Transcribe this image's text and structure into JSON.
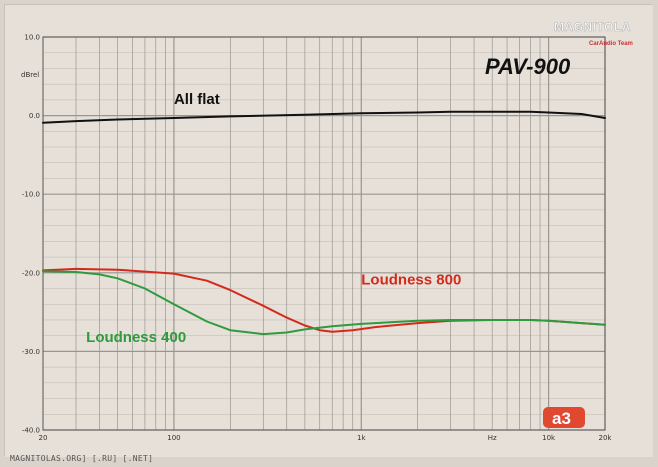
{
  "chart_data": {
    "type": "line",
    "title": "PAV-900",
    "ylabel": "dBrel",
    "xlabel": "Hz",
    "xscale": "log",
    "xlim": [
      20,
      20000
    ],
    "ylim": [
      -40,
      10
    ],
    "x_tick_labels": [
      "20",
      "100",
      "1k",
      "10k",
      "20k"
    ],
    "x_ticks": [
      20,
      100,
      1000,
      10000,
      20000
    ],
    "hz_label_at": 5000,
    "y_ticks": [
      10,
      0,
      -10,
      -20,
      -30,
      -40
    ],
    "y_tick_labels": [
      "10.0",
      "0.0",
      "-10.0",
      "-20.0",
      "-30.0",
      "-40.0"
    ],
    "grid": true,
    "series": [
      {
        "name": "All flat",
        "color": "#111111",
        "label_at": [
          100,
          1.5
        ],
        "points": [
          [
            20,
            -0.9
          ],
          [
            30,
            -0.7
          ],
          [
            50,
            -0.5
          ],
          [
            100,
            -0.3
          ],
          [
            200,
            -0.1
          ],
          [
            500,
            0.1
          ],
          [
            1000,
            0.3
          ],
          [
            2000,
            0.4
          ],
          [
            3000,
            0.5
          ],
          [
            5000,
            0.5
          ],
          [
            8000,
            0.5
          ],
          [
            10000,
            0.4
          ],
          [
            15000,
            0.2
          ],
          [
            20000,
            -0.3
          ]
        ]
      },
      {
        "name": "Loudness 800",
        "color": "#d42a1c",
        "label_at": [
          1000,
          -21.5
        ],
        "points": [
          [
            20,
            -19.7
          ],
          [
            30,
            -19.5
          ],
          [
            50,
            -19.6
          ],
          [
            100,
            -20.1
          ],
          [
            150,
            -21.0
          ],
          [
            200,
            -22.2
          ],
          [
            300,
            -24.2
          ],
          [
            400,
            -25.7
          ],
          [
            500,
            -26.7
          ],
          [
            600,
            -27.3
          ],
          [
            700,
            -27.5
          ],
          [
            900,
            -27.3
          ],
          [
            1200,
            -26.9
          ],
          [
            2000,
            -26.4
          ],
          [
            3000,
            -26.1
          ],
          [
            5000,
            -26.0
          ],
          [
            8000,
            -26.0
          ],
          [
            10000,
            -26.1
          ],
          [
            15000,
            -26.4
          ],
          [
            20000,
            -26.6
          ]
        ]
      },
      {
        "name": "Loudness 400",
        "color": "#2f9a3e",
        "label_at": [
          34,
          -28.8
        ],
        "points": [
          [
            20,
            -19.8
          ],
          [
            30,
            -19.9
          ],
          [
            40,
            -20.2
          ],
          [
            50,
            -20.7
          ],
          [
            70,
            -22.0
          ],
          [
            100,
            -24.0
          ],
          [
            150,
            -26.2
          ],
          [
            200,
            -27.3
          ],
          [
            300,
            -27.8
          ],
          [
            400,
            -27.6
          ],
          [
            500,
            -27.2
          ],
          [
            700,
            -26.8
          ],
          [
            1000,
            -26.5
          ],
          [
            2000,
            -26.1
          ],
          [
            3000,
            -26.0
          ],
          [
            5000,
            -26.0
          ],
          [
            8000,
            -26.0
          ],
          [
            10000,
            -26.1
          ],
          [
            15000,
            -26.4
          ],
          [
            20000,
            -26.6
          ]
        ]
      }
    ]
  },
  "watermark": {
    "brand": "MAGNITOLA",
    "sub": "CarAudio Team"
  },
  "badge": "a3",
  "footer": "MAGNITOLAS.ORG] [.RU] [.NET]",
  "colors": {
    "background": "#e6e0d8",
    "grid": "#9a9590",
    "badge": "#e04830"
  }
}
